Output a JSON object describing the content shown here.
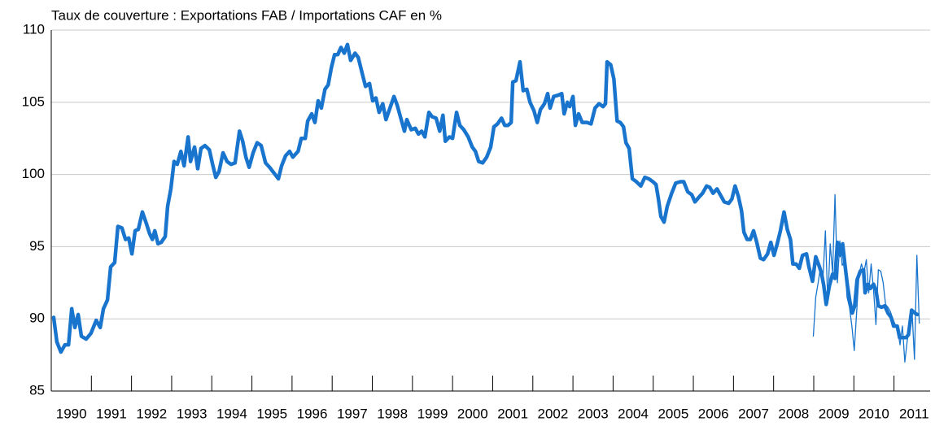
{
  "chart_data": {
    "type": "line",
    "title": "Taux de couverture : Exportations FAB / Importations CAF en %",
    "xlim": [
      1990,
      2011.9
    ],
    "xticks": [
      1990,
      1991,
      1992,
      1993,
      1994,
      1995,
      1996,
      1997,
      1998,
      1999,
      2000,
      2001,
      2002,
      2003,
      2004,
      2005,
      2006,
      2007,
      2008,
      2009,
      2010,
      2011
    ],
    "ylim": [
      85,
      110
    ],
    "yticks": [
      85,
      90,
      95,
      100,
      105,
      110
    ],
    "grid": true,
    "series": [
      {
        "color": "#1874cd",
        "line_width": 4.5,
        "x": [
          1990.06,
          1990.14,
          1990.24,
          1990.34,
          1990.43,
          1990.51,
          1990.59,
          1990.67,
          1990.75,
          1990.87,
          1990.99,
          1991.12,
          1991.22,
          1991.3,
          1991.4,
          1991.48,
          1991.58,
          1991.66,
          1991.76,
          1991.85,
          1991.93,
          1992.01,
          1992.09,
          1992.17,
          1992.27,
          1992.37,
          1992.45,
          1992.52,
          1992.58,
          1992.66,
          1992.74,
          1992.84,
          1992.9,
          1992.98,
          1993.06,
          1993.14,
          1993.23,
          1993.31,
          1993.41,
          1993.47,
          1993.57,
          1993.65,
          1993.73,
          1993.83,
          1993.94,
          1994.02,
          1994.1,
          1994.18,
          1994.28,
          1994.38,
          1994.48,
          1994.58,
          1994.69,
          1994.77,
          1994.85,
          1994.93,
          1995.03,
          1995.13,
          1995.23,
          1995.34,
          1995.44,
          1995.66,
          1995.74,
          1995.84,
          1995.94,
          1996.02,
          1996.15,
          1996.23,
          1996.33,
          1996.39,
          1996.49,
          1996.57,
          1996.65,
          1996.73,
          1996.82,
          1996.9,
          1996.98,
          1997.06,
          1997.14,
          1997.22,
          1997.3,
          1997.38,
          1997.46,
          1997.57,
          1997.65,
          1997.73,
          1997.83,
          1997.93,
          1998.01,
          1998.09,
          1998.17,
          1998.26,
          1998.34,
          1998.44,
          1998.54,
          1998.62,
          1998.7,
          1998.8,
          1998.86,
          1998.97,
          1999.07,
          1999.15,
          1999.23,
          1999.31,
          1999.41,
          1999.49,
          1999.59,
          1999.68,
          1999.76,
          1999.82,
          1999.92,
          2000.0,
          2000.1,
          2000.18,
          2000.28,
          2000.39,
          2000.49,
          2000.57,
          2000.65,
          2000.75,
          2000.85,
          2000.95,
          2001.03,
          2001.12,
          2001.22,
          2001.3,
          2001.38,
          2001.46,
          2001.5,
          2001.58,
          2001.68,
          2001.76,
          2001.85,
          2001.93,
          2002.03,
          2002.11,
          2002.19,
          2002.29,
          2002.37,
          2002.43,
          2002.52,
          2002.64,
          2002.72,
          2002.78,
          2002.86,
          2002.92,
          2003.0,
          2003.06,
          2003.14,
          2003.23,
          2003.35,
          2003.45,
          2003.55,
          2003.65,
          2003.75,
          2003.81,
          2003.85,
          2003.94,
          2004.02,
          2004.1,
          2004.18,
          2004.26,
          2004.32,
          2004.4,
          2004.48,
          2004.58,
          2004.69,
          2004.79,
          2004.89,
          2004.99,
          2005.07,
          2005.13,
          2005.19,
          2005.27,
          2005.35,
          2005.46,
          2005.56,
          2005.68,
          2005.76,
          2005.86,
          2005.96,
          2006.04,
          2006.13,
          2006.23,
          2006.33,
          2006.41,
          2006.49,
          2006.59,
          2006.67,
          2006.77,
          2006.88,
          2006.96,
          2007.04,
          2007.12,
          2007.2,
          2007.26,
          2007.34,
          2007.42,
          2007.5,
          2007.58,
          2007.67,
          2007.75,
          2007.85,
          2007.93,
          2008.01,
          2008.09,
          2008.17,
          2008.26,
          2008.34,
          2008.42,
          2008.48,
          2008.56,
          2008.64,
          2008.72,
          2008.82,
          2008.88,
          2008.97,
          2009.05,
          2009.13,
          2009.19,
          2009.25,
          2009.31,
          2009.39,
          2009.47,
          2009.53,
          2009.59,
          2009.66,
          2009.72,
          2009.78,
          2009.84,
          2009.9,
          2009.96,
          2010.02,
          2010.08,
          2010.16,
          2010.24,
          2010.28,
          2010.35,
          2010.41,
          2010.49,
          2010.55,
          2010.61,
          2010.69,
          2010.77,
          2010.85,
          2010.93,
          2010.99,
          2011.08,
          2011.14,
          2011.22,
          2011.3,
          2011.36,
          2011.44,
          2011.52,
          2011.58
        ],
        "values": [
          90.1,
          88.4,
          87.7,
          88.2,
          88.2,
          90.7,
          89.4,
          90.3,
          88.8,
          88.6,
          89.0,
          89.9,
          89.4,
          90.7,
          91.3,
          93.6,
          93.9,
          96.4,
          96.3,
          95.5,
          95.6,
          94.5,
          96.1,
          96.2,
          97.4,
          96.6,
          95.9,
          95.5,
          96.1,
          95.2,
          95.3,
          95.7,
          97.8,
          99.0,
          100.9,
          100.7,
          101.6,
          100.6,
          102.6,
          100.9,
          101.9,
          100.4,
          101.8,
          102.0,
          101.7,
          100.7,
          99.8,
          100.2,
          101.5,
          100.9,
          100.7,
          100.8,
          103.0,
          102.3,
          101.2,
          100.5,
          101.5,
          102.2,
          102.0,
          100.8,
          100.5,
          99.7,
          100.6,
          101.3,
          101.6,
          101.2,
          101.6,
          102.5,
          102.5,
          103.7,
          104.2,
          103.6,
          105.1,
          104.6,
          105.9,
          106.2,
          107.4,
          108.3,
          108.3,
          108.8,
          108.4,
          109.0,
          107.9,
          108.4,
          108.1,
          107.2,
          106.1,
          106.3,
          105.1,
          105.3,
          104.3,
          104.9,
          103.8,
          104.6,
          105.4,
          104.8,
          104.0,
          103.0,
          103.8,
          103.1,
          103.2,
          102.8,
          103.0,
          102.6,
          104.3,
          104.0,
          103.9,
          103.0,
          104.1,
          102.3,
          102.6,
          102.5,
          104.3,
          103.4,
          103.1,
          102.6,
          101.9,
          101.6,
          100.9,
          100.8,
          101.2,
          101.9,
          103.3,
          103.5,
          103.9,
          103.4,
          103.4,
          103.6,
          106.4,
          106.5,
          107.8,
          105.8,
          105.9,
          105.0,
          104.4,
          103.6,
          104.5,
          104.9,
          105.6,
          104.6,
          105.4,
          105.5,
          105.6,
          104.2,
          105.0,
          104.7,
          105.4,
          103.4,
          104.2,
          103.6,
          103.6,
          103.5,
          104.6,
          104.9,
          104.7,
          104.9,
          107.8,
          107.6,
          106.6,
          103.7,
          103.6,
          103.3,
          102.2,
          101.8,
          99.7,
          99.5,
          99.2,
          99.8,
          99.7,
          99.5,
          99.3,
          98.3,
          97.1,
          96.7,
          97.8,
          98.7,
          99.4,
          99.5,
          99.5,
          98.8,
          98.6,
          98.1,
          98.4,
          98.7,
          99.2,
          99.1,
          98.7,
          99.0,
          98.6,
          98.1,
          98.0,
          98.3,
          99.2,
          98.5,
          97.5,
          96.0,
          95.5,
          95.5,
          96.1,
          95.3,
          94.2,
          94.1,
          94.5,
          95.3,
          94.4,
          95.2,
          96.1,
          97.4,
          96.2,
          95.5,
          93.8,
          93.8,
          93.5,
          94.4,
          94.5,
          93.6,
          92.6,
          94.3,
          93.7,
          93.2,
          92.3,
          91.0,
          92.3,
          93.1,
          92.8,
          95.3,
          94.4,
          95.2,
          93.7,
          92.3,
          91.2,
          90.4,
          90.9,
          92.7,
          93.3,
          93.4,
          91.8,
          92.4,
          92.1,
          92.4,
          92.0,
          90.9,
          90.8,
          90.9,
          90.4,
          90.1,
          89.5,
          89.5,
          88.7,
          88.7,
          88.7,
          88.9,
          90.6,
          90.4,
          90.3
        ]
      },
      {
        "color": "#1874cd",
        "line_width": 1.3,
        "x": [
          2008.99,
          2009.05,
          2009.11,
          2009.17,
          2009.23,
          2009.29,
          2009.35,
          2009.41,
          2009.47,
          2009.53,
          2009.59,
          2009.65,
          2009.71,
          2009.77,
          2009.83,
          2009.89,
          2009.95,
          2010.01,
          2010.07,
          2010.13,
          2010.19,
          2010.25,
          2010.31,
          2010.37,
          2010.43,
          2010.49,
          2010.55,
          2010.61,
          2010.67,
          2010.73,
          2010.79,
          2010.85,
          2010.91,
          2010.97,
          2011.03,
          2011.09,
          2011.15,
          2011.21,
          2011.27,
          2011.33,
          2011.39,
          2011.45,
          2011.51,
          2011.57,
          2011.63
        ],
        "values": [
          88.8,
          91.5,
          92.5,
          93.6,
          92.8,
          96.1,
          91.1,
          95.2,
          93.2,
          98.6,
          92.5,
          95.4,
          93.7,
          94.0,
          91.5,
          90.8,
          89.5,
          87.8,
          90.5,
          93.1,
          93.8,
          93.2,
          94.1,
          91.8,
          93.8,
          92.0,
          89.6,
          93.4,
          93.3,
          92.5,
          91.0,
          90.8,
          90.5,
          90.0,
          89.6,
          89.3,
          88.2,
          89.5,
          87.0,
          88.5,
          89.5,
          90.5,
          87.2,
          94.4,
          89.7
        ]
      }
    ]
  }
}
